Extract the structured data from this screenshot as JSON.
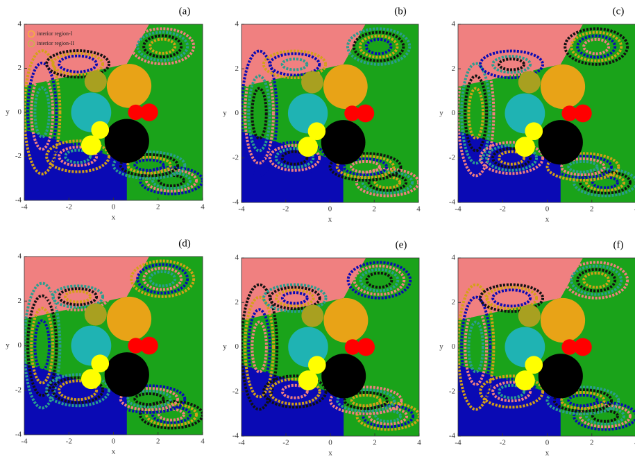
{
  "chart_data": [
    {
      "type": "basin",
      "panel_label": "(a)",
      "xlabel": "x",
      "ylabel": "y",
      "xlim": [
        -4,
        4
      ],
      "ylim": [
        -4,
        4
      ],
      "xticks": [
        -4,
        -2,
        0,
        2,
        4
      ],
      "yticks": [
        -4,
        -2,
        0,
        2,
        4
      ],
      "legend": [
        {
          "name": "interior region-I",
          "color": "#f4b13c"
        },
        {
          "name": "interior region-II",
          "color": "#c8b44a"
        }
      ]
    },
    {
      "type": "basin",
      "panel_label": "(b)",
      "xlabel": "x",
      "ylabel": "y",
      "xlim": [
        -4,
        4
      ],
      "ylim": [
        -4,
        4
      ],
      "xticks": [
        -4,
        -2,
        0,
        2,
        4
      ],
      "yticks": [
        -4,
        -2,
        0,
        2,
        4
      ]
    },
    {
      "type": "basin",
      "panel_label": "(c)",
      "xlabel": "x",
      "ylabel": "y",
      "xlim": [
        -4,
        4
      ],
      "ylim": [
        -4,
        4
      ],
      "xticks": [
        -4,
        -2,
        0,
        2,
        4
      ],
      "yticks": [
        -4,
        -2,
        0,
        2,
        4
      ]
    },
    {
      "type": "basin",
      "panel_label": "(d)",
      "xlabel": "x",
      "ylabel": "y",
      "xlim": [
        -4,
        4
      ],
      "ylim": [
        -4,
        4
      ],
      "xticks": [
        -4,
        -2,
        0,
        2,
        4
      ],
      "yticks": [
        -4,
        -2,
        0,
        2,
        4
      ]
    },
    {
      "type": "basin",
      "panel_label": "(e)",
      "xlabel": "x",
      "ylabel": "y",
      "xlim": [
        -4,
        4
      ],
      "ylim": [
        -4,
        4
      ],
      "xticks": [
        -4,
        -2,
        0,
        2,
        4
      ],
      "yticks": [
        -4,
        -2,
        0,
        2,
        4
      ]
    },
    {
      "type": "basin",
      "panel_label": "(f)",
      "xlabel": "x",
      "ylabel": "y",
      "xlim": [
        -4,
        4
      ],
      "ylim": [
        -4,
        4
      ],
      "xticks": [
        -4,
        -2,
        0,
        2,
        4
      ],
      "yticks": [
        -4,
        -2,
        0,
        2,
        4
      ]
    }
  ]
}
